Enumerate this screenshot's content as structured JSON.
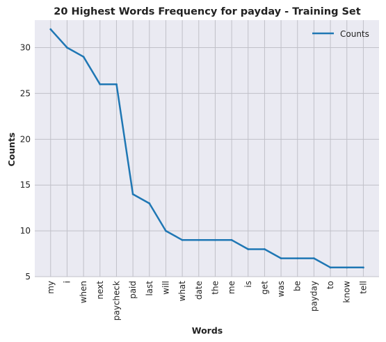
{
  "chart_data": {
    "type": "line",
    "title": "20 Highest Words Frequency for payday - Training Set",
    "xlabel": "Words",
    "ylabel": "Counts",
    "categories": [
      "my",
      "i",
      "when",
      "next",
      "paycheck",
      "paid",
      "last",
      "will",
      "what",
      "date",
      "the",
      "me",
      "is",
      "get",
      "was",
      "be",
      "payday",
      "to",
      "know",
      "tell"
    ],
    "series": [
      {
        "name": "Counts",
        "values": [
          32,
          30,
          29,
          26,
          26,
          14,
          13,
          10,
          9,
          9,
          9,
          9,
          8,
          8,
          7,
          7,
          7,
          6,
          6,
          6
        ]
      }
    ],
    "y_ticks": [
      5,
      10,
      15,
      20,
      25,
      30
    ],
    "ylim": [
      5,
      33
    ],
    "grid": true,
    "legend": "top-right",
    "colors": {
      "line": "#1f77b4",
      "plot_bg": "#eaeaf2",
      "grid": "#c0c0c8"
    }
  }
}
